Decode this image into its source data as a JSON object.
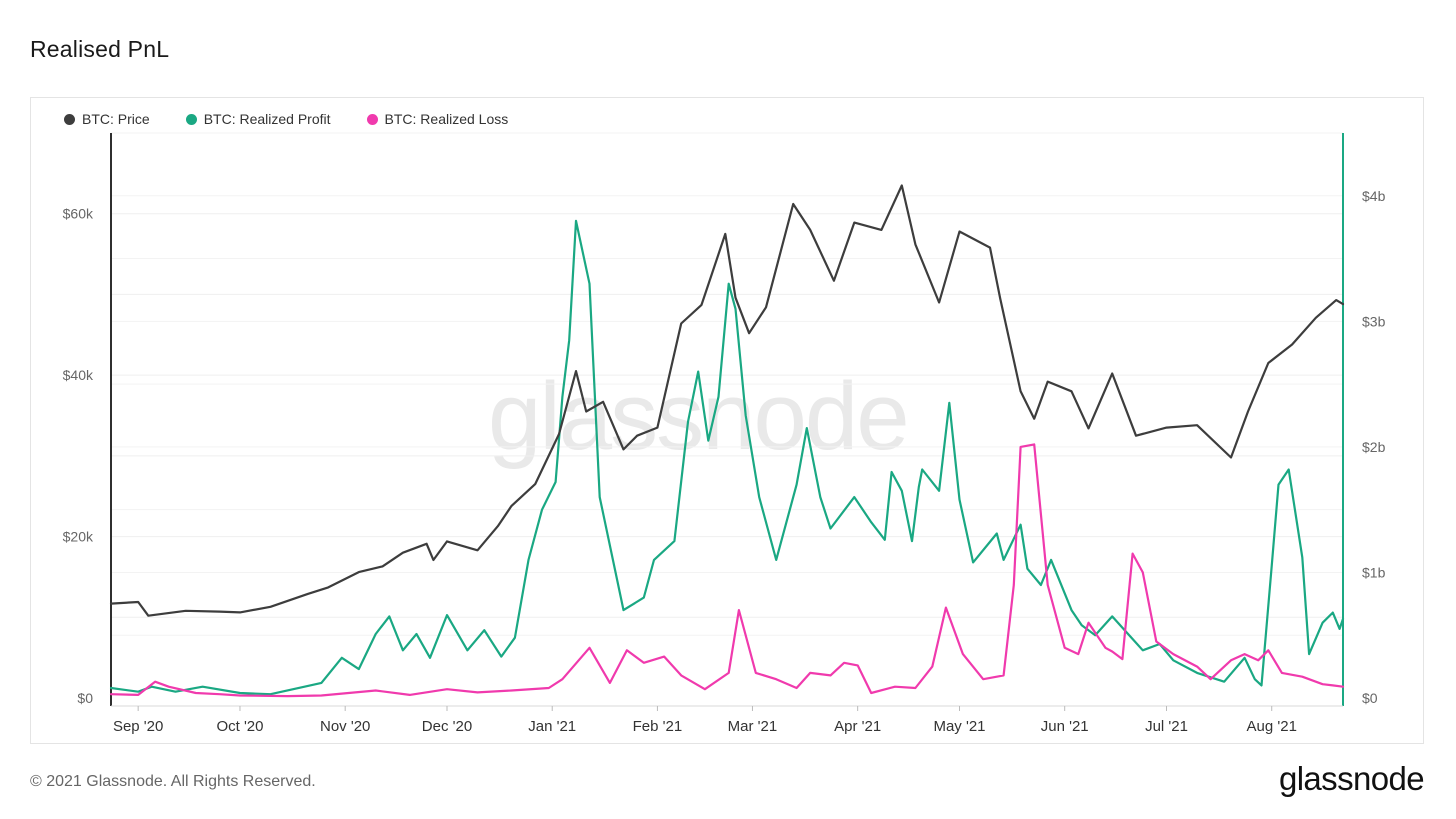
{
  "page": {
    "title": "Realised PnL",
    "watermark": "glassnode",
    "copyright": "© 2021 Glassnode. All Rights Reserved.",
    "logo": "glassnode"
  },
  "chart_data": {
    "type": "line",
    "legend_placement": "top-left",
    "grid": true,
    "x_start": "2020-08-24",
    "x_end": "2021-08-22",
    "x_ticks": [
      {
        "label": "Sep '20",
        "date": "2020-09-01"
      },
      {
        "label": "Oct '20",
        "date": "2020-10-01"
      },
      {
        "label": "Nov '20",
        "date": "2020-11-01"
      },
      {
        "label": "Dec '20",
        "date": "2020-12-01"
      },
      {
        "label": "Jan '21",
        "date": "2021-01-01"
      },
      {
        "label": "Feb '21",
        "date": "2021-02-01"
      },
      {
        "label": "Mar '21",
        "date": "2021-03-01"
      },
      {
        "label": "Apr '21",
        "date": "2021-04-01"
      },
      {
        "label": "May '21",
        "date": "2021-05-01"
      },
      {
        "label": "Jun '21",
        "date": "2021-06-01"
      },
      {
        "label": "Jul '21",
        "date": "2021-07-01"
      },
      {
        "label": "Aug '21",
        "date": "2021-08-01"
      }
    ],
    "y_left": {
      "min": 0,
      "max": 70000,
      "ticks": [
        {
          "v": 0,
          "label": "$0"
        },
        {
          "v": 20000,
          "label": "$20k"
        },
        {
          "v": 40000,
          "label": "$40k"
        },
        {
          "v": 60000,
          "label": "$60k"
        }
      ]
    },
    "y_right": {
      "min": 0,
      "max": 4500000000,
      "ticks": [
        {
          "v": 0,
          "label": "$0"
        },
        {
          "v": 1000000000,
          "label": "$1b"
        },
        {
          "v": 2000000000,
          "label": "$2b"
        },
        {
          "v": 3000000000,
          "label": "$3b"
        },
        {
          "v": 4000000000,
          "label": "$4b"
        }
      ]
    },
    "series": [
      {
        "name": "BTC: Price",
        "color": "#3d3d3d",
        "axis": "left",
        "points": [
          [
            "2020-08-24",
            11700
          ],
          [
            "2020-09-01",
            11900
          ],
          [
            "2020-09-04",
            10200
          ],
          [
            "2020-09-15",
            10800
          ],
          [
            "2020-09-25",
            10700
          ],
          [
            "2020-10-01",
            10600
          ],
          [
            "2020-10-10",
            11300
          ],
          [
            "2020-10-21",
            12900
          ],
          [
            "2020-10-27",
            13700
          ],
          [
            "2020-11-05",
            15600
          ],
          [
            "2020-11-12",
            16300
          ],
          [
            "2020-11-18",
            18000
          ],
          [
            "2020-11-25",
            19100
          ],
          [
            "2020-11-27",
            17100
          ],
          [
            "2020-12-01",
            19400
          ],
          [
            "2020-12-10",
            18300
          ],
          [
            "2020-12-16",
            21300
          ],
          [
            "2020-12-20",
            23800
          ],
          [
            "2020-12-27",
            26500
          ],
          [
            "2021-01-03",
            32700
          ],
          [
            "2021-01-08",
            40500
          ],
          [
            "2021-01-11",
            35500
          ],
          [
            "2021-01-16",
            36700
          ],
          [
            "2021-01-22",
            30800
          ],
          [
            "2021-01-26",
            32500
          ],
          [
            "2021-02-01",
            33500
          ],
          [
            "2021-02-08",
            46400
          ],
          [
            "2021-02-14",
            48700
          ],
          [
            "2021-02-21",
            57500
          ],
          [
            "2021-02-24",
            49600
          ],
          [
            "2021-02-28",
            45200
          ],
          [
            "2021-03-05",
            48400
          ],
          [
            "2021-03-13",
            61200
          ],
          [
            "2021-03-18",
            58000
          ],
          [
            "2021-03-25",
            51700
          ],
          [
            "2021-03-31",
            58900
          ],
          [
            "2021-04-08",
            58000
          ],
          [
            "2021-04-14",
            63500
          ],
          [
            "2021-04-18",
            56200
          ],
          [
            "2021-04-25",
            49000
          ],
          [
            "2021-05-01",
            57800
          ],
          [
            "2021-05-10",
            55800
          ],
          [
            "2021-05-13",
            49500
          ],
          [
            "2021-05-19",
            38000
          ],
          [
            "2021-05-23",
            34600
          ],
          [
            "2021-05-27",
            39200
          ],
          [
            "2021-06-03",
            38000
          ],
          [
            "2021-06-08",
            33400
          ],
          [
            "2021-06-15",
            40200
          ],
          [
            "2021-06-22",
            32500
          ],
          [
            "2021-07-01",
            33500
          ],
          [
            "2021-07-10",
            33800
          ],
          [
            "2021-07-20",
            29800
          ],
          [
            "2021-07-25",
            35500
          ],
          [
            "2021-07-31",
            41500
          ],
          [
            "2021-08-07",
            43800
          ],
          [
            "2021-08-14",
            47100
          ],
          [
            "2021-08-20",
            49300
          ],
          [
            "2021-08-22",
            48800
          ]
        ]
      },
      {
        "name": "BTC: Realized Profit",
        "color": "#1aa883",
        "axis": "right",
        "points": [
          [
            "2020-08-24",
            80000000
          ],
          [
            "2020-09-01",
            50000000
          ],
          [
            "2020-09-05",
            90000000
          ],
          [
            "2020-09-12",
            50000000
          ],
          [
            "2020-09-20",
            90000000
          ],
          [
            "2020-10-01",
            40000000
          ],
          [
            "2020-10-10",
            30000000
          ],
          [
            "2020-10-20",
            90000000
          ],
          [
            "2020-10-25",
            120000000
          ],
          [
            "2020-10-31",
            320000000
          ],
          [
            "2020-11-05",
            230000000
          ],
          [
            "2020-11-10",
            510000000
          ],
          [
            "2020-11-14",
            650000000
          ],
          [
            "2020-11-18",
            380000000
          ],
          [
            "2020-11-22",
            510000000
          ],
          [
            "2020-11-26",
            320000000
          ],
          [
            "2020-12-01",
            660000000
          ],
          [
            "2020-12-07",
            380000000
          ],
          [
            "2020-12-12",
            540000000
          ],
          [
            "2020-12-17",
            330000000
          ],
          [
            "2020-12-21",
            480000000
          ],
          [
            "2020-12-25",
            1100000000
          ],
          [
            "2020-12-29",
            1500000000
          ],
          [
            "2021-01-02",
            1720000000
          ],
          [
            "2021-01-04",
            2400000000
          ],
          [
            "2021-01-06",
            2850000000
          ],
          [
            "2021-01-08",
            3800000000
          ],
          [
            "2021-01-12",
            3300000000
          ],
          [
            "2021-01-15",
            1600000000
          ],
          [
            "2021-01-22",
            700000000
          ],
          [
            "2021-01-28",
            800000000
          ],
          [
            "2021-01-31",
            1100000000
          ],
          [
            "2021-02-06",
            1250000000
          ],
          [
            "2021-02-10",
            2200000000
          ],
          [
            "2021-02-13",
            2600000000
          ],
          [
            "2021-02-16",
            2050000000
          ],
          [
            "2021-02-19",
            2400000000
          ],
          [
            "2021-02-22",
            3300000000
          ],
          [
            "2021-02-24",
            3100000000
          ],
          [
            "2021-02-27",
            2250000000
          ],
          [
            "2021-03-03",
            1600000000
          ],
          [
            "2021-03-08",
            1100000000
          ],
          [
            "2021-03-14",
            1700000000
          ],
          [
            "2021-03-17",
            2150000000
          ],
          [
            "2021-03-21",
            1600000000
          ],
          [
            "2021-03-24",
            1350000000
          ],
          [
            "2021-03-31",
            1600000000
          ],
          [
            "2021-04-05",
            1400000000
          ],
          [
            "2021-04-09",
            1260000000
          ],
          [
            "2021-04-11",
            1800000000
          ],
          [
            "2021-04-14",
            1650000000
          ],
          [
            "2021-04-17",
            1250000000
          ],
          [
            "2021-04-19",
            1680000000
          ],
          [
            "2021-04-20",
            1820000000
          ],
          [
            "2021-04-25",
            1650000000
          ],
          [
            "2021-04-28",
            2350000000
          ],
          [
            "2021-05-01",
            1580000000
          ],
          [
            "2021-05-05",
            1080000000
          ],
          [
            "2021-05-12",
            1310000000
          ],
          [
            "2021-05-14",
            1100000000
          ],
          [
            "2021-05-19",
            1380000000
          ],
          [
            "2021-05-21",
            1030000000
          ],
          [
            "2021-05-25",
            900000000
          ],
          [
            "2021-05-28",
            1100000000
          ],
          [
            "2021-06-03",
            700000000
          ],
          [
            "2021-06-06",
            580000000
          ],
          [
            "2021-06-10",
            500000000
          ],
          [
            "2021-06-15",
            650000000
          ],
          [
            "2021-06-20",
            500000000
          ],
          [
            "2021-06-24",
            380000000
          ],
          [
            "2021-06-29",
            430000000
          ],
          [
            "2021-07-03",
            300000000
          ],
          [
            "2021-07-10",
            200000000
          ],
          [
            "2021-07-18",
            130000000
          ],
          [
            "2021-07-24",
            320000000
          ],
          [
            "2021-07-27",
            150000000
          ],
          [
            "2021-07-29",
            100000000
          ],
          [
            "2021-08-01",
            1050000000
          ],
          [
            "2021-08-03",
            1700000000
          ],
          [
            "2021-08-06",
            1820000000
          ],
          [
            "2021-08-10",
            1120000000
          ],
          [
            "2021-08-12",
            350000000
          ],
          [
            "2021-08-16",
            600000000
          ],
          [
            "2021-08-19",
            680000000
          ],
          [
            "2021-08-21",
            550000000
          ],
          [
            "2021-08-22",
            630000000
          ]
        ]
      },
      {
        "name": "BTC: Realized Loss",
        "color": "#f03aad",
        "axis": "right",
        "points": [
          [
            "2020-08-24",
            30000000
          ],
          [
            "2020-09-01",
            25000000
          ],
          [
            "2020-09-06",
            130000000
          ],
          [
            "2020-09-10",
            90000000
          ],
          [
            "2020-09-18",
            40000000
          ],
          [
            "2020-09-25",
            30000000
          ],
          [
            "2020-10-01",
            20000000
          ],
          [
            "2020-10-15",
            15000000
          ],
          [
            "2020-10-25",
            20000000
          ],
          [
            "2020-11-10",
            60000000
          ],
          [
            "2020-11-20",
            25000000
          ],
          [
            "2020-12-01",
            70000000
          ],
          [
            "2020-12-10",
            45000000
          ],
          [
            "2020-12-20",
            60000000
          ],
          [
            "2020-12-31",
            80000000
          ],
          [
            "2021-01-04",
            150000000
          ],
          [
            "2021-01-12",
            400000000
          ],
          [
            "2021-01-18",
            120000000
          ],
          [
            "2021-01-23",
            380000000
          ],
          [
            "2021-01-28",
            280000000
          ],
          [
            "2021-02-03",
            330000000
          ],
          [
            "2021-02-08",
            180000000
          ],
          [
            "2021-02-15",
            70000000
          ],
          [
            "2021-02-22",
            200000000
          ],
          [
            "2021-02-25",
            700000000
          ],
          [
            "2021-03-02",
            200000000
          ],
          [
            "2021-03-08",
            150000000
          ],
          [
            "2021-03-14",
            80000000
          ],
          [
            "2021-03-18",
            200000000
          ],
          [
            "2021-03-24",
            180000000
          ],
          [
            "2021-03-28",
            280000000
          ],
          [
            "2021-04-01",
            260000000
          ],
          [
            "2021-04-05",
            40000000
          ],
          [
            "2021-04-12",
            90000000
          ],
          [
            "2021-04-18",
            80000000
          ],
          [
            "2021-04-23",
            250000000
          ],
          [
            "2021-04-27",
            720000000
          ],
          [
            "2021-05-02",
            350000000
          ],
          [
            "2021-05-08",
            150000000
          ],
          [
            "2021-05-14",
            180000000
          ],
          [
            "2021-05-17",
            900000000
          ],
          [
            "2021-05-19",
            2000000000
          ],
          [
            "2021-05-23",
            2020000000
          ],
          [
            "2021-05-27",
            900000000
          ],
          [
            "2021-06-01",
            400000000
          ],
          [
            "2021-06-05",
            350000000
          ],
          [
            "2021-06-08",
            600000000
          ],
          [
            "2021-06-13",
            400000000
          ],
          [
            "2021-06-15",
            370000000
          ],
          [
            "2021-06-18",
            310000000
          ],
          [
            "2021-06-21",
            1150000000
          ],
          [
            "2021-06-24",
            1000000000
          ],
          [
            "2021-06-28",
            450000000
          ],
          [
            "2021-07-03",
            350000000
          ],
          [
            "2021-07-10",
            250000000
          ],
          [
            "2021-07-14",
            150000000
          ],
          [
            "2021-07-20",
            300000000
          ],
          [
            "2021-07-24",
            350000000
          ],
          [
            "2021-07-28",
            300000000
          ],
          [
            "2021-07-31",
            380000000
          ],
          [
            "2021-08-04",
            200000000
          ],
          [
            "2021-08-10",
            170000000
          ],
          [
            "2021-08-16",
            110000000
          ],
          [
            "2021-08-19",
            100000000
          ],
          [
            "2021-08-22",
            90000000
          ]
        ]
      }
    ]
  }
}
